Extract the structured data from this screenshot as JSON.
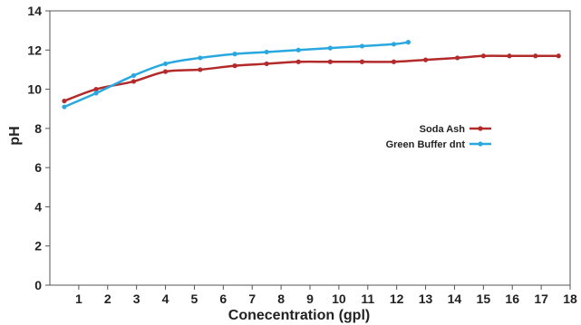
{
  "chart_data": {
    "type": "line",
    "title": "",
    "xlabel": "Conecentration (gpl)",
    "ylabel": "pH",
    "xlim": [
      0,
      18
    ],
    "ylim": [
      0,
      14
    ],
    "x_ticks": [
      "1",
      "2",
      "3",
      "4",
      "5",
      "6",
      "7",
      "8",
      "9",
      "10",
      "11",
      "12",
      "13",
      "14",
      "15",
      "16",
      "17",
      "18"
    ],
    "y_ticks": [
      "0",
      "2",
      "4",
      "6",
      "8",
      "10",
      "12",
      "14"
    ],
    "grid": false,
    "legend_position": "right",
    "series": [
      {
        "name": "Soda Ash",
        "color": "#b22a2a",
        "x": [
          0.5,
          1.6,
          2.9,
          4.0,
          5.2,
          6.4,
          7.5,
          8.6,
          9.7,
          10.8,
          11.9,
          13.0,
          14.1,
          15.0,
          15.9,
          16.8,
          17.6
        ],
        "y": [
          9.4,
          10.0,
          10.4,
          10.9,
          11.0,
          11.2,
          11.3,
          11.4,
          11.4,
          11.4,
          11.4,
          11.5,
          11.6,
          11.7,
          11.7,
          11.7,
          11.7
        ]
      },
      {
        "name": "Green Buffer dnt",
        "color": "#29a8e0",
        "x": [
          0.5,
          1.6,
          2.9,
          4.0,
          5.2,
          6.4,
          7.5,
          8.6,
          9.7,
          10.8,
          11.9,
          12.4
        ],
        "y": [
          9.1,
          9.8,
          10.7,
          11.3,
          11.6,
          11.8,
          11.9,
          12.0,
          12.1,
          12.2,
          12.3,
          12.4
        ]
      }
    ]
  }
}
